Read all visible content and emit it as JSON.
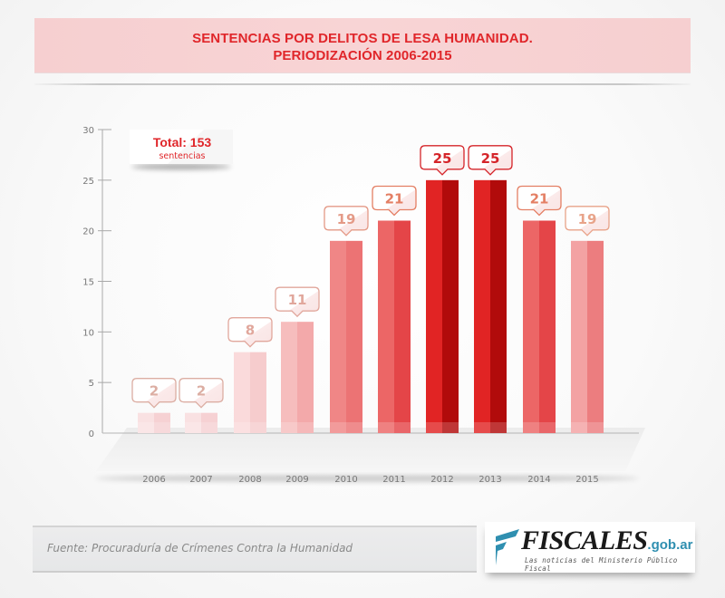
{
  "header": {
    "title_line1": "SENTENCIAS POR DELITOS DE LESA HUMANIDAD.",
    "title_line2": "PERIODIZACIÓN 2006-2015"
  },
  "total_badge": {
    "label": "Total: 153",
    "sublabel": "sentencias"
  },
  "footer": {
    "source": "Fuente: Procuraduría de Crímenes Contra la Humanidad",
    "logo_name": "FISCALES",
    "logo_domain": ".gob.ar",
    "logo_tagline": "Las noticias del Ministerio Público Fiscal"
  },
  "colors": {
    "title": "#e0262a",
    "title_band": "#f7d1d2",
    "logo_accent": "#2f8fb0"
  },
  "chart_data": {
    "type": "bar",
    "title": "SENTENCIAS POR DELITOS DE LESA HUMANIDAD. PERIODIZACIÓN 2006-2015",
    "xlabel": "",
    "ylabel": "",
    "categories": [
      "2006",
      "2007",
      "2008",
      "2009",
      "2010",
      "2011",
      "2012",
      "2013",
      "2014",
      "2015"
    ],
    "values": [
      2,
      2,
      8,
      11,
      19,
      21,
      25,
      25,
      21,
      19
    ],
    "ylim": [
      0,
      30
    ],
    "yticks": [
      0,
      5,
      10,
      15,
      20,
      25,
      30
    ],
    "grid": false,
    "data_labels": [
      "2",
      "2",
      "8",
      "11",
      "19",
      "21",
      "25",
      "25",
      "21",
      "19"
    ],
    "total": 153,
    "bar_colors": [
      [
        "#f9e1e2",
        "#f6d1d3"
      ],
      [
        "#f9e1e2",
        "#f6d1d3"
      ],
      [
        "#fadadb",
        "#f6cccd"
      ],
      [
        "#f6bdbd",
        "#f3a9aa"
      ],
      [
        "#f08686",
        "#ec7374"
      ],
      [
        "#ec6666",
        "#e44548"
      ],
      [
        "#e12424",
        "#b10b0b"
      ],
      [
        "#e12424",
        "#b10b0b"
      ],
      [
        "#ec6666",
        "#e44548"
      ],
      [
        "#f3a2a3",
        "#ec7d7f"
      ]
    ],
    "label_colors": [
      "#dcaea3",
      "#dcaea3",
      "#e1a79c",
      "#e1a79c",
      "#e49a87",
      "#e47f64",
      "#d5252a",
      "#d5252a",
      "#e47f64",
      "#e8a389"
    ]
  }
}
